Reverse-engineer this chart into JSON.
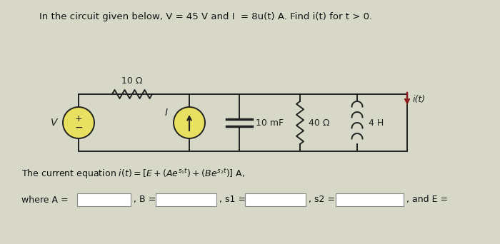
{
  "title_text": "In the circuit given below, V = 45 V and I  = 8u(t) A. Find i(t) for t > 0.",
  "equation_text": "The current equation i(t) = [E + (Aeˢ¹ᵗ) + (Beˢ²ᵗ)] A,",
  "resistor1_label": "10 Ω",
  "capacitor_label": "10 mF",
  "resistor2_label": "40 Ω",
  "inductor_label": "4 H",
  "V_label": "V",
  "I_label": "I",
  "i_label": "i(t)",
  "bg_color": "#d8d8c8",
  "circuit_color": "#222222",
  "source_fill": "#e8e060",
  "input_box_color": "#ffffff",
  "input_box_border": "#888888",
  "arrow_color": "#8b1a1a",
  "title_fontsize": 9.5,
  "label_fontsize": 9,
  "eq_fontsize": 9
}
